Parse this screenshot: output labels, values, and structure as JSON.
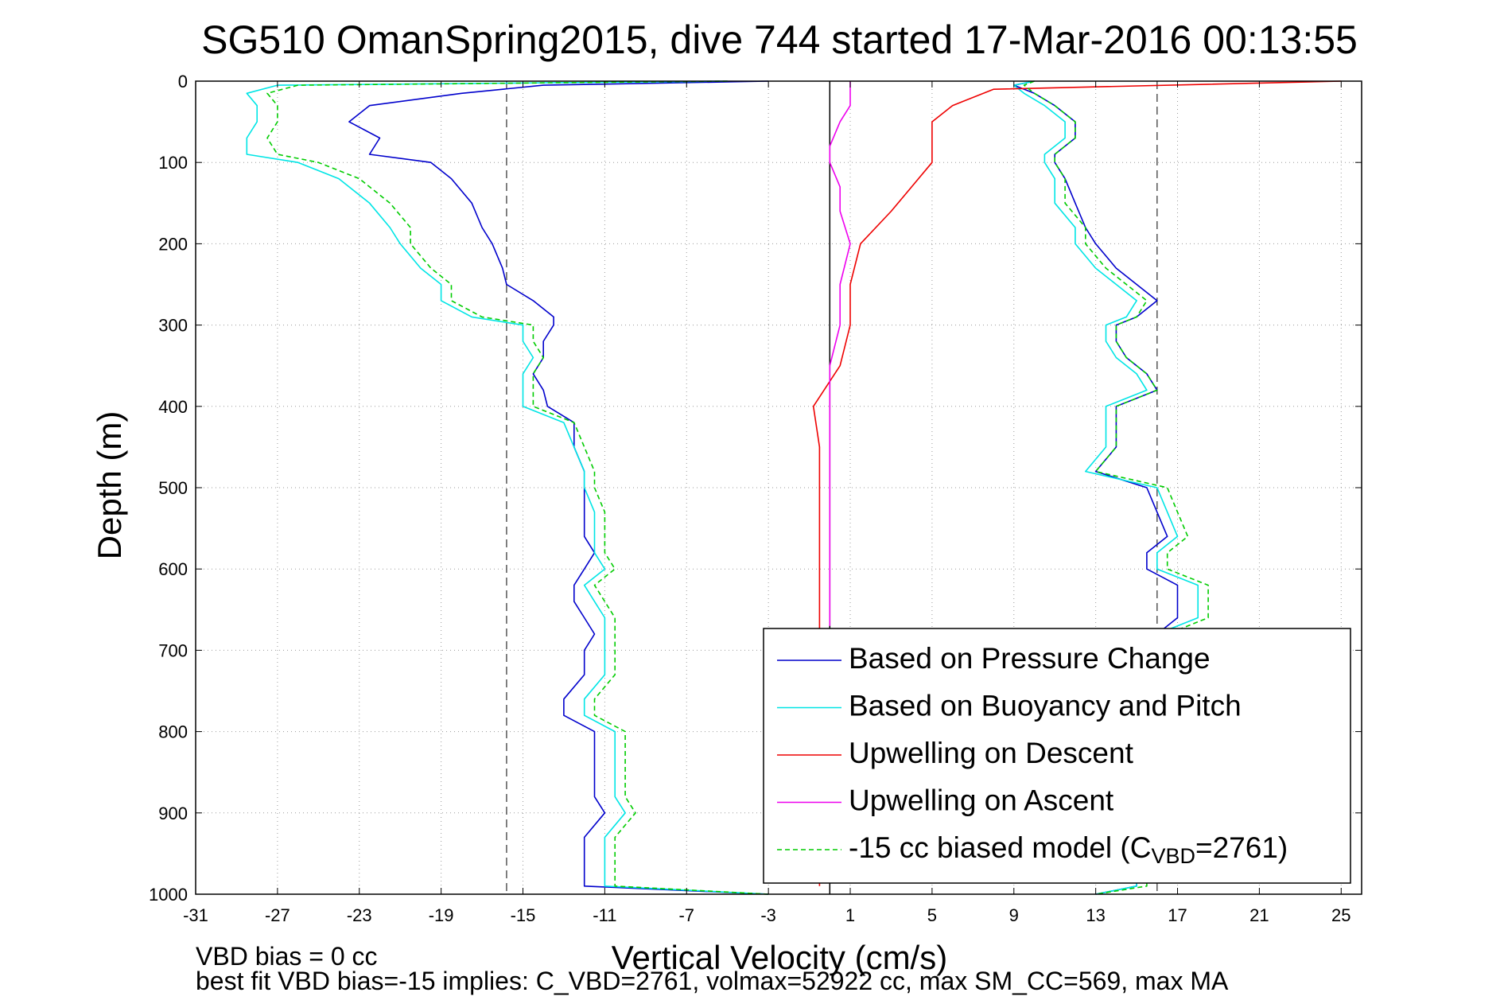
{
  "chart_data": {
    "type": "line",
    "title": "SG510 OmanSpring2015, dive 744 started 17-Mar-2016 00:13:55",
    "xlabel": "Vertical Velocity (cm/s)",
    "ylabel": "Depth (m)",
    "xlim": [
      -31,
      26
    ],
    "ylim": [
      0,
      1000
    ],
    "y_reversed": true,
    "x_ticks": [
      -31,
      -27,
      -23,
      -19,
      -15,
      -11,
      -7,
      -3,
      1,
      5,
      9,
      13,
      17,
      21,
      25
    ],
    "y_ticks": [
      0,
      100,
      200,
      300,
      400,
      500,
      600,
      700,
      800,
      900,
      1000
    ],
    "grid": true,
    "legend_position": "bottom-right",
    "reference_lines": [
      {
        "x": -15.8,
        "style": "dashed",
        "color": "#555555"
      },
      {
        "x": 0,
        "style": "solid",
        "color": "#000000"
      },
      {
        "x": 16,
        "style": "dashed",
        "color": "#555555"
      }
    ],
    "series": [
      {
        "name": "Based on Pressure Change",
        "color": "#0000cc",
        "style": "solid",
        "depth": [
          0,
          5,
          15,
          30,
          50,
          70,
          90,
          100,
          120,
          150,
          180,
          200,
          230,
          250,
          270,
          290,
          300,
          320,
          340,
          360,
          380,
          400,
          420,
          450,
          480,
          500,
          530,
          560,
          580,
          600,
          620,
          640,
          660,
          680,
          700,
          730,
          760,
          780,
          800,
          830,
          860,
          880,
          900,
          930,
          960,
          990,
          1000
        ],
        "descent": [
          -3,
          -14,
          -18,
          -22.5,
          -23.5,
          -22,
          -22.5,
          -19.5,
          -18.5,
          -17.5,
          -17,
          -16.5,
          -16,
          -15.8,
          -14.5,
          -13.5,
          -13.5,
          -14,
          -14,
          -14.5,
          -14,
          -13.8,
          -12.5,
          -12.5,
          -12,
          -12,
          -12,
          -12,
          -11.5,
          -12,
          -12.5,
          -12.5,
          -12,
          -11.5,
          -12,
          -12,
          -13,
          -13,
          -11.5,
          -11.5,
          -11.5,
          -11.5,
          -11,
          -12,
          -12,
          -12,
          -3
        ],
        "ascent": [
          10,
          9,
          10,
          11,
          12,
          12,
          11,
          11,
          11.5,
          12,
          12.5,
          13,
          14,
          15,
          16,
          15,
          14,
          14,
          14.5,
          15.5,
          16,
          14,
          14,
          14,
          13,
          15.5,
          16,
          16.5,
          15.5,
          15.5,
          17,
          17,
          17,
          16,
          15.5,
          15,
          15,
          15,
          15,
          15,
          15,
          15,
          15,
          15,
          15,
          15,
          13
        ]
      },
      {
        "name": "Based on Buoyancy and Pitch",
        "color": "#00e5e5",
        "style": "solid",
        "depth": [
          0,
          5,
          15,
          30,
          50,
          70,
          90,
          100,
          120,
          150,
          180,
          200,
          230,
          250,
          270,
          290,
          300,
          320,
          340,
          360,
          380,
          400,
          420,
          450,
          480,
          500,
          530,
          560,
          580,
          600,
          620,
          640,
          660,
          680,
          700,
          730,
          760,
          780,
          800,
          830,
          860,
          880,
          900,
          930,
          960,
          990,
          1000
        ],
        "descent": [
          -5,
          -27,
          -28.5,
          -28,
          -28,
          -28.5,
          -28.5,
          -26,
          -24,
          -22.5,
          -21.5,
          -21,
          -20,
          -19,
          -19,
          -17.5,
          -15,
          -15,
          -14.5,
          -15,
          -15,
          -15,
          -13,
          -12.5,
          -12,
          -12,
          -11.5,
          -11.5,
          -11.5,
          -11,
          -12,
          -11.5,
          -11,
          -11,
          -11,
          -11,
          -12,
          -12,
          -10.5,
          -10.5,
          -10.5,
          -10.5,
          -10,
          -11,
          -11,
          -11,
          -3
        ],
        "ascent": [
          10,
          9,
          9.5,
          10.5,
          11.5,
          11.5,
          10.5,
          10.5,
          11,
          11,
          12,
          12,
          13,
          14,
          15,
          14.5,
          13.5,
          13.5,
          14,
          15,
          15.5,
          13.5,
          13.5,
          13.5,
          12.5,
          16,
          16.5,
          17,
          16,
          16,
          18,
          18,
          18,
          16,
          15.5,
          15,
          15,
          15,
          15,
          15,
          15,
          15,
          15,
          15,
          15,
          15,
          13
        ]
      },
      {
        "name": "Upwelling on Descent",
        "color": "#ee0000",
        "style": "solid",
        "depth": [
          0,
          10,
          30,
          50,
          80,
          100,
          130,
          160,
          200,
          250,
          300,
          350,
          400,
          450,
          500,
          550,
          600,
          650,
          700,
          750,
          800,
          850,
          900,
          950,
          990
        ],
        "values": [
          25,
          8,
          6,
          5,
          5,
          5,
          4,
          3,
          1.5,
          1,
          1,
          0.5,
          -0.8,
          -0.5,
          -0.5,
          -0.5,
          -0.5,
          -0.5,
          -0.5,
          -0.5,
          -0.5,
          -0.5,
          -0.5,
          -0.5,
          -0.5
        ]
      },
      {
        "name": "Upwelling on Ascent",
        "color": "#ee00ee",
        "style": "solid",
        "depth": [
          0,
          10,
          30,
          50,
          80,
          100,
          130,
          160,
          200,
          250,
          300,
          350,
          400,
          450,
          500,
          550,
          600,
          650,
          670
        ],
        "values": [
          1,
          1,
          1,
          0.5,
          0,
          0,
          0.5,
          0.5,
          1,
          0.5,
          0.5,
          0,
          0,
          0,
          0,
          0,
          0,
          0,
          0
        ]
      },
      {
        "name": "-15 cc biased model (C_VBD=2761)",
        "color": "#00cc00",
        "style": "dashed",
        "depth": [
          0,
          5,
          15,
          30,
          50,
          70,
          90,
          100,
          120,
          150,
          180,
          200,
          230,
          250,
          270,
          290,
          300,
          320,
          340,
          360,
          380,
          400,
          420,
          450,
          480,
          500,
          530,
          560,
          580,
          600,
          620,
          640,
          660,
          680,
          700,
          730,
          760,
          780,
          800,
          830,
          860,
          880,
          900,
          930,
          960,
          990,
          1000
        ],
        "descent": [
          -5,
          -26,
          -27.5,
          -27,
          -27,
          -27.5,
          -27,
          -25,
          -23,
          -21.5,
          -20.5,
          -20.5,
          -19.5,
          -18.5,
          -18.5,
          -17,
          -14.5,
          -14.5,
          -14,
          -14.5,
          -14.5,
          -14.5,
          -12.5,
          -12,
          -11.5,
          -11.5,
          -11,
          -11,
          -11,
          -10.5,
          -11.5,
          -11,
          -10.5,
          -10.5,
          -10.5,
          -10.5,
          -11.5,
          -11.5,
          -10,
          -10,
          -10,
          -10,
          -9.5,
          -10.5,
          -10.5,
          -10.5,
          -3
        ],
        "ascent": [
          10,
          9.5,
          10,
          11,
          12,
          12,
          11,
          11,
          11.5,
          11.5,
          12.5,
          12.5,
          13.5,
          14.5,
          15.5,
          15,
          14,
          14,
          14.5,
          15.5,
          16,
          14,
          14,
          14,
          13,
          16.5,
          17,
          17.5,
          16.5,
          16.5,
          18.5,
          18.5,
          18.5,
          16.5,
          16,
          15.5,
          15.5,
          15.5,
          15.5,
          15.5,
          15.5,
          15.5,
          15.5,
          15.5,
          15.5,
          15.5,
          13
        ]
      }
    ]
  },
  "legend": {
    "items": [
      {
        "label": "Based on Pressure Change",
        "color": "#0000cc"
      },
      {
        "label": "Based on Buoyancy and Pitch",
        "color": "#00e5e5"
      },
      {
        "label": "Upwelling on Descent",
        "color": "#ee0000"
      },
      {
        "label": "Upwelling on Ascent",
        "color": "#ee00ee"
      }
    ],
    "model_prefix": "-15 cc biased model (C",
    "model_sub": "VBD",
    "model_suffix": "=2761)",
    "model_color": "#00cc00"
  },
  "notes": {
    "line1": "VBD bias = 0 cc",
    "line2": "best fit VBD bias=-15 implies: C_VBD=2761, volmax=52922 cc, max SM_CC=569, max MA"
  }
}
